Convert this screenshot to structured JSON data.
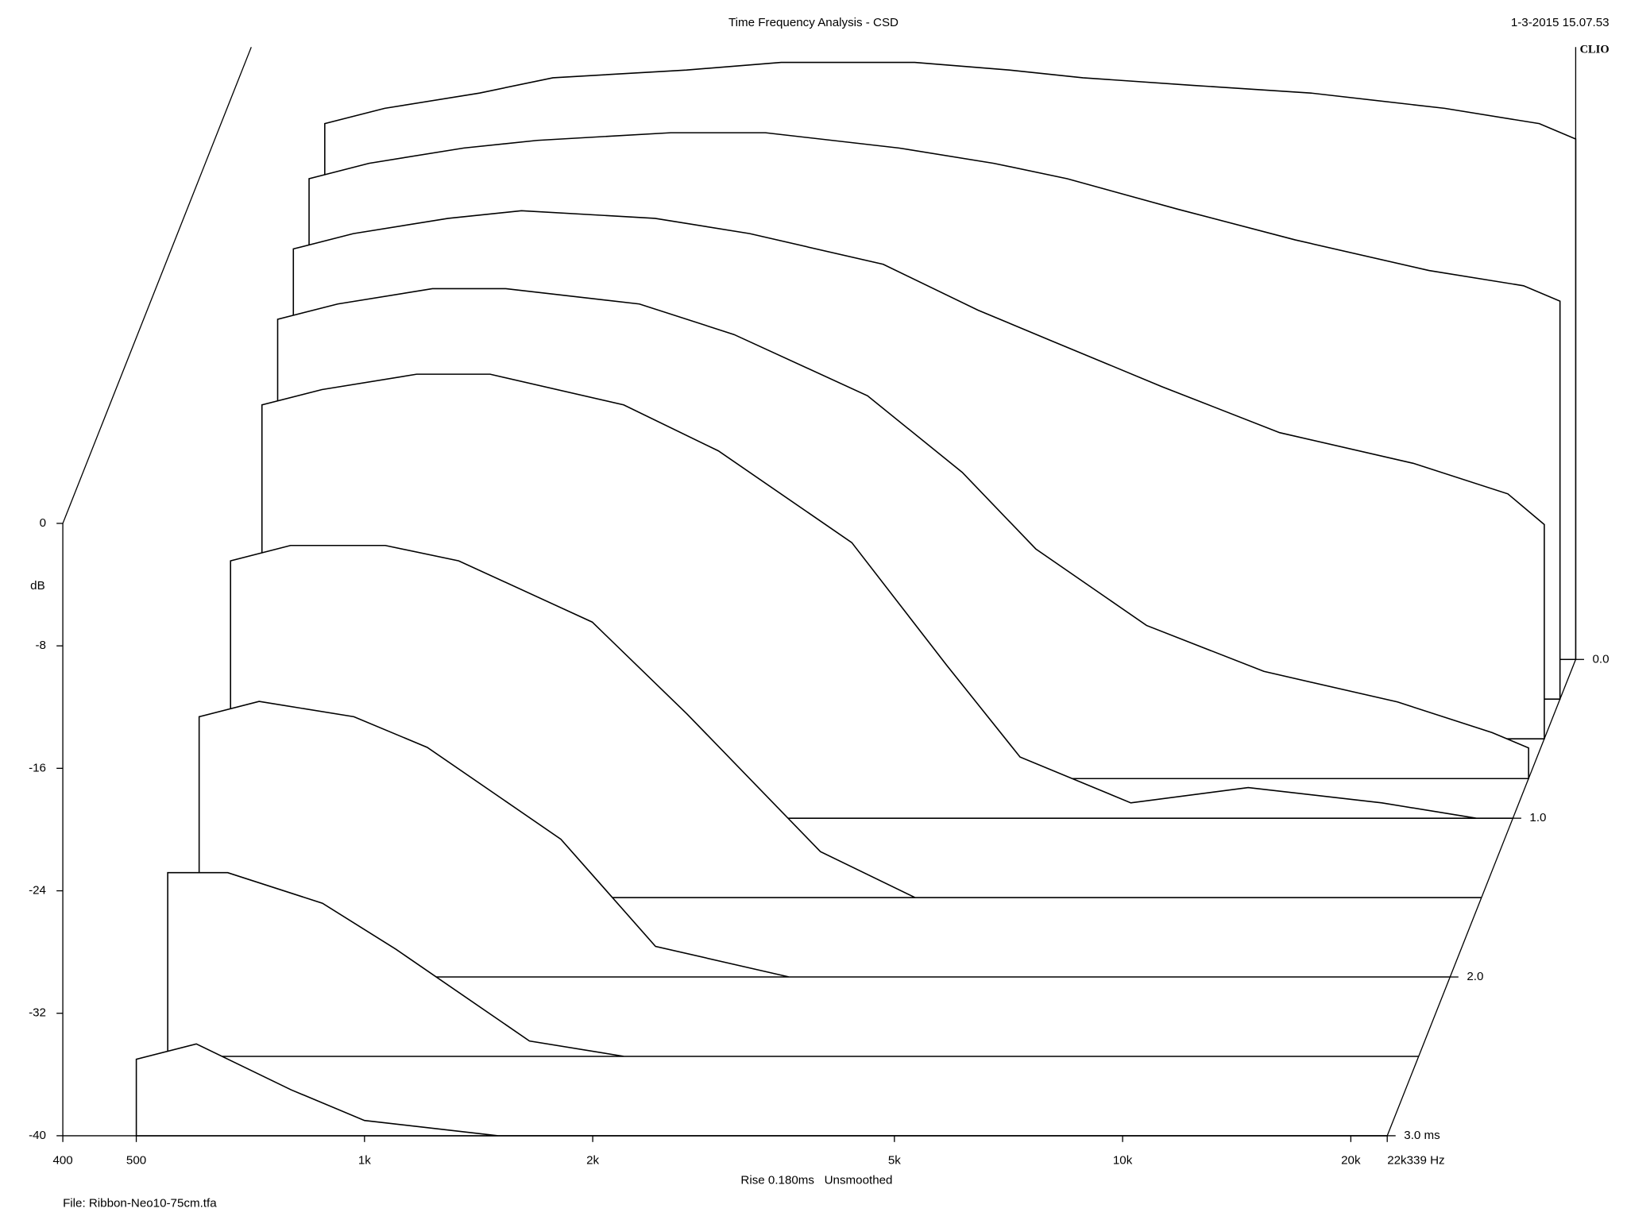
{
  "chart_data": {
    "type": "waterfall",
    "title": "Time Frequency Analysis - CSD",
    "timestamp": "1-3-2015 15.07.53",
    "brand": "CLIO",
    "ylabel": "dB",
    "xlabel": "Rise 0.180ms   Unsmoothed",
    "footer": "File: Ribbon-Neo10-75cm.tfa",
    "log_x": true,
    "color": "#000000",
    "xlim": [
      400,
      22339
    ],
    "xticks": [
      400,
      500,
      {
        "value": 1000,
        "label": "1k"
      },
      {
        "value": 2000,
        "label": "2k"
      },
      {
        "value": 5000,
        "label": "5k"
      },
      {
        "value": 10000,
        "label": "10k"
      },
      {
        "value": 20000,
        "label": "20k"
      },
      {
        "value": 22339,
        "label": "22k339 Hz"
      }
    ],
    "ylim": [
      -40,
      0
    ],
    "yticks": [
      0,
      -8,
      -16,
      -24,
      -32,
      -40
    ],
    "zlim": [
      0,
      3
    ],
    "zticks": [
      {
        "value": 0,
        "label": "0.0"
      },
      {
        "value": 1,
        "label": "1.0"
      },
      {
        "value": 2,
        "label": "2.0"
      },
      {
        "value": 3,
        "label": "3.0 ms"
      }
    ],
    "x": [
      500,
      600,
      800,
      1000,
      1500,
      2000,
      3000,
      4000,
      5000,
      7000,
      10000,
      15000,
      20000,
      22339
    ],
    "series": [
      {
        "time": 0,
        "values": [
          -5,
          -4,
          -3,
          -2,
          -1.5,
          -1,
          -1,
          -1.5,
          -2,
          -2.5,
          -3,
          -4,
          -5,
          -6
        ]
      },
      {
        "time": 0.25,
        "values": [
          -6,
          -5,
          -4,
          -3.5,
          -3,
          -3,
          -4,
          -5,
          -6,
          -8,
          -10,
          -12,
          -13,
          -14
        ]
      },
      {
        "time": 0.5,
        "values": [
          -8,
          -7,
          -6,
          -5.5,
          -6,
          -7,
          -9,
          -12,
          -14,
          -17,
          -20,
          -22,
          -24,
          -26
        ]
      },
      {
        "time": 0.75,
        "values": [
          -10,
          -9,
          -8,
          -8,
          -9,
          -11,
          -15,
          -20,
          -25,
          -30,
          -33,
          -35,
          -37,
          -38
        ]
      },
      {
        "time": 1,
        "values": [
          -13,
          -12,
          -11,
          -11,
          -13,
          -16,
          -22,
          -30,
          -36,
          -39,
          -38,
          -39,
          -40,
          -40
        ]
      },
      {
        "time": 1.5,
        "values": [
          -18,
          -17,
          -17,
          -18,
          -22,
          -28,
          -37,
          -40,
          -40,
          -40,
          -40,
          -40,
          -40,
          -40
        ]
      },
      {
        "time": 2,
        "values": [
          -23,
          -22,
          -23,
          -25,
          -31,
          -38,
          -40,
          -40,
          -40,
          -40,
          -40,
          -40,
          -40,
          -40
        ]
      },
      {
        "time": 2.5,
        "values": [
          -28,
          -28,
          -30,
          -33,
          -39,
          -40,
          -40,
          -40,
          -40,
          -40,
          -40,
          -40,
          -40,
          -40
        ]
      },
      {
        "time": 3,
        "values": [
          -35,
          -34,
          -37,
          -39,
          -40,
          -40,
          -40,
          -40,
          -40,
          -40,
          -40,
          -40,
          -40,
          -40
        ]
      }
    ]
  }
}
